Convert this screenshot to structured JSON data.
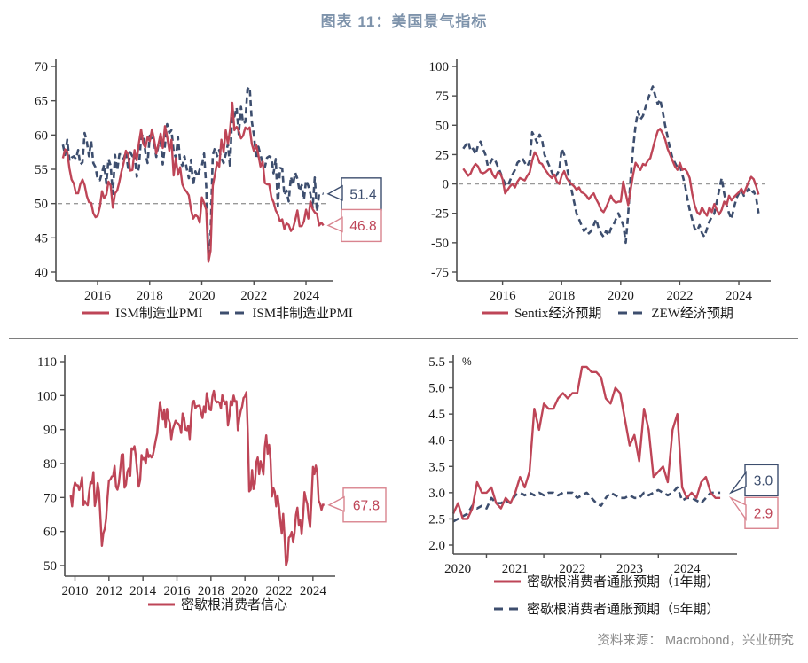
{
  "title": "图表 11：美国景气指标",
  "source": "资料来源：  Macrobond，兴业研究",
  "colors": {
    "red": "#BE4557",
    "navy": "#3D4E6E",
    "title_blue": "#7E93AB",
    "grid_gray": "#999999",
    "axis": "#4D4D4D",
    "text": "#1A1A1A",
    "red_border": "#D9848F",
    "source_gray": "#8A8A8A",
    "divider_gray": "#7E7E7E"
  },
  "chart_data": [
    {
      "type": "line",
      "x_start": 2014.67,
      "x_end": 2024.67,
      "x_ticks": [
        2016,
        2018,
        2020,
        2022,
        2024
      ],
      "x_tick_labels": [
        "2016",
        "2018",
        "2020",
        "2022",
        "2024"
      ],
      "y_ticks": [
        40,
        45,
        50,
        55,
        60,
        65,
        70
      ],
      "y_tick_labels": [
        "40",
        "45",
        "50",
        "55",
        "60",
        "65",
        "70"
      ],
      "ylim": [
        40,
        70
      ],
      "ref_line": 50,
      "series": [
        {
          "name": "ISM制造业PMI",
          "style": "solid",
          "color_role": "red",
          "values": [
            56.6,
            57.9,
            57.6,
            55.1,
            53.5,
            52.9,
            51.5,
            51.5,
            52.8,
            53.5,
            52.7,
            51.1,
            50.2,
            50.1,
            48.6,
            48.0,
            48.2,
            49.5,
            51.8,
            50.8,
            51.3,
            53.2,
            52.6,
            49.4,
            51.5,
            51.9,
            53.2,
            54.7,
            56.0,
            57.7,
            57.2,
            54.8,
            54.9,
            57.8,
            56.3,
            58.8,
            60.8,
            58.7,
            58.2,
            59.7,
            59.1,
            60.8,
            59.3,
            57.3,
            58.7,
            60.2,
            58.1,
            61.3,
            59.8,
            57.7,
            59.3,
            54.1,
            56.6,
            54.2,
            55.3,
            52.8,
            52.1,
            51.7,
            51.2,
            49.1,
            47.8,
            48.3,
            48.1,
            47.2,
            50.9,
            50.1,
            49.1,
            41.5,
            43.1,
            52.6,
            54.2,
            56.0,
            55.4,
            59.3,
            57.5,
            60.7,
            58.7,
            60.8,
            64.7,
            60.7,
            61.2,
            60.6,
            59.5,
            59.9,
            61.1,
            60.8,
            61.1,
            58.7,
            57.6,
            58.6,
            57.1,
            55.4,
            56.1,
            53.0,
            52.8,
            52.8,
            50.9,
            50.2,
            49.0,
            48.4,
            47.4,
            47.7,
            46.3,
            47.1,
            46.9,
            46.0,
            46.4,
            47.6,
            49.0,
            46.7,
            46.7,
            47.4,
            49.1,
            47.8,
            50.3,
            49.2,
            48.7,
            48.5,
            46.8,
            47.2,
            46.8
          ]
        },
        {
          "name": "ISM非制造业PMI",
          "style": "dashed",
          "color_role": "navy",
          "values": [
            58.6,
            57.1,
            59.3,
            56.2,
            56.7,
            56.9,
            56.5,
            57.8,
            55.7,
            56.0,
            60.3,
            59.0,
            56.9,
            59.1,
            55.9,
            55.3,
            53.5,
            53.4,
            54.5,
            55.7,
            52.9,
            56.5,
            55.5,
            51.4,
            57.1,
            54.8,
            57.2,
            57.2,
            56.5,
            57.6,
            55.2,
            57.5,
            56.9,
            57.4,
            53.9,
            55.3,
            59.8,
            60.1,
            57.4,
            55.9,
            59.9,
            59.5,
            58.8,
            56.8,
            58.6,
            59.1,
            55.7,
            58.5,
            61.6,
            60.3,
            60.7,
            57.6,
            56.7,
            59.7,
            56.1,
            55.5,
            56.9,
            55.1,
            53.7,
            56.4,
            52.6,
            54.7,
            53.9,
            55.0,
            55.5,
            57.3,
            52.5,
            41.8,
            45.4,
            57.1,
            58.1,
            56.9,
            57.8,
            56.6,
            55.9,
            57.2,
            58.7,
            55.3,
            63.7,
            62.7,
            64.0,
            60.1,
            64.1,
            61.7,
            61.9,
            66.7,
            67.0,
            62.0,
            59.9,
            56.5,
            58.3,
            57.1,
            55.9,
            55.3,
            56.7,
            56.9,
            56.7,
            54.4,
            56.5,
            49.6,
            55.2,
            55.1,
            51.2,
            51.9,
            50.3,
            53.9,
            52.7,
            54.5,
            53.6,
            51.8,
            52.7,
            50.6,
            53.4,
            52.6,
            51.4,
            49.4,
            53.8,
            48.8,
            51.4,
            51.5,
            51.4
          ]
        }
      ],
      "callouts": [
        {
          "label": "51.4",
          "value": 51.4,
          "color_role": "navy"
        },
        {
          "label": "46.8",
          "value": 46.8,
          "color_role": "red"
        }
      ]
    },
    {
      "type": "line",
      "x_start": 2014.67,
      "x_end": 2024.67,
      "x_ticks": [
        2016,
        2018,
        2020,
        2022,
        2024
      ],
      "x_tick_labels": [
        "2016",
        "2018",
        "2020",
        "2022",
        "2024"
      ],
      "y_ticks": [
        -75,
        -50,
        -25,
        0,
        25,
        50,
        75,
        100
      ],
      "y_tick_labels": [
        "-75",
        "-50",
        "-25",
        "0",
        "25",
        "50",
        "75",
        "100"
      ],
      "ylim": [
        -75,
        100
      ],
      "ref_line": 0,
      "series": [
        {
          "name": "Sentix经济预期",
          "style": "solid",
          "color_role": "red",
          "values": [
            13,
            10,
            7,
            9,
            14,
            17,
            15,
            10,
            9,
            10,
            12,
            13,
            8,
            5,
            10,
            9,
            4,
            -8,
            -5,
            -2,
            0,
            -3,
            2,
            5,
            4,
            3,
            7,
            10,
            20,
            27,
            24,
            18,
            17,
            13,
            10,
            7,
            5,
            8,
            2,
            0,
            7,
            11,
            5,
            2,
            0,
            -2,
            -5,
            -3,
            -7,
            -8,
            -10,
            -13,
            -10,
            -8,
            -13,
            -17,
            -22,
            -24,
            -20,
            -15,
            -10,
            -14,
            -16,
            -15,
            -15,
            2,
            -8,
            -18,
            -5,
            8,
            18,
            15,
            12,
            17,
            16,
            20,
            22,
            30,
            38,
            45,
            47,
            43,
            38,
            30,
            25,
            20,
            15,
            12,
            18,
            12,
            13,
            10,
            5,
            -8,
            -18,
            -24,
            -26,
            -20,
            -24,
            -27,
            -20,
            -24,
            -17,
            -22,
            -26,
            -22,
            -15,
            -18,
            -10,
            -14,
            -11,
            -9,
            -7,
            -4,
            -8,
            -3,
            2,
            6,
            4,
            -2,
            -9
          ]
        },
        {
          "name": "ZEW经济预期",
          "style": "dashed",
          "color_role": "navy",
          "values": [
            30,
            33,
            36,
            28,
            30,
            25,
            33,
            36,
            30,
            25,
            15,
            18,
            22,
            20,
            15,
            10,
            5,
            0,
            -2,
            3,
            8,
            12,
            18,
            20,
            22,
            18,
            15,
            20,
            44,
            40,
            35,
            42,
            38,
            25,
            20,
            15,
            10,
            5,
            8,
            12,
            30,
            25,
            15,
            5,
            -5,
            -15,
            -25,
            -30,
            -35,
            -40,
            -38,
            -42,
            -40,
            -35,
            -30,
            -38,
            -42,
            -45,
            -40,
            -44,
            -38,
            -35,
            -30,
            -25,
            -30,
            -35,
            -50,
            -25,
            5,
            30,
            50,
            62,
            55,
            58,
            65,
            72,
            78,
            83,
            75,
            68,
            72,
            62,
            50,
            40,
            30,
            22,
            18,
            14,
            16,
            8,
            0,
            -12,
            -22,
            -30,
            -38,
            -40,
            -35,
            -42,
            -45,
            -38,
            -32,
            -28,
            -25,
            -15,
            -5,
            5,
            -8,
            -18,
            -25,
            -30,
            -20,
            -12,
            -8,
            -5,
            -10,
            -7,
            -4,
            -8,
            -6,
            -12,
            -25
          ]
        }
      ],
      "callouts": []
    },
    {
      "type": "line",
      "x_start": 2009.75,
      "x_end": 2024.67,
      "x_ticks": [
        2010,
        2012,
        2014,
        2016,
        2018,
        2020,
        2022,
        2024
      ],
      "x_tick_labels": [
        "2010",
        "2012",
        "2014",
        "2016",
        "2018",
        "2020",
        "2022",
        "2024"
      ],
      "y_ticks": [
        50,
        60,
        70,
        80,
        90,
        100,
        110
      ],
      "y_tick_labels": [
        "50",
        "60",
        "70",
        "80",
        "90",
        "100",
        "110"
      ],
      "ylim": [
        50,
        110
      ],
      "ref_line": null,
      "series": [
        {
          "name": "密歇根消费者信心",
          "style": "solid",
          "color_role": "red",
          "values": [
            70.6,
            67.4,
            72.5,
            74.4,
            73.6,
            73.6,
            72.2,
            73.6,
            76.0,
            67.8,
            68.9,
            68.2,
            67.7,
            71.6,
            74.5,
            74.2,
            77.5,
            67.5,
            69.8,
            74.3,
            71.5,
            63.7,
            55.8,
            59.5,
            60.8,
            63.7,
            69.9,
            75.0,
            75.3,
            76.2,
            76.4,
            79.3,
            73.2,
            72.3,
            74.3,
            78.3,
            82.6,
            82.7,
            72.9,
            73.8,
            77.6,
            78.6,
            76.4,
            84.5,
            84.1,
            85.1,
            82.1,
            77.5,
            73.2,
            75.1,
            82.5,
            81.2,
            81.6,
            80.0,
            84.1,
            81.9,
            82.5,
            81.8,
            82.5,
            84.6,
            86.9,
            88.8,
            93.6,
            98.1,
            95.4,
            93.0,
            95.9,
            90.7,
            96.1,
            93.1,
            91.9,
            87.2,
            90.0,
            91.3,
            92.6,
            92.0,
            91.7,
            91.0,
            89.0,
            94.7,
            93.5,
            90.0,
            89.8,
            91.2,
            87.2,
            93.8,
            98.2,
            98.5,
            96.3,
            96.9,
            97.0,
            97.1,
            95.0,
            93.4,
            96.8,
            95.1,
            100.7,
            98.5,
            95.9,
            95.7,
            99.7,
            101.4,
            98.8,
            98.0,
            98.2,
            97.9,
            96.2,
            100.1,
            98.6,
            97.5,
            98.3,
            91.2,
            93.8,
            98.4,
            97.2,
            100.0,
            98.2,
            98.4,
            89.8,
            93.2,
            95.5,
            96.8,
            99.3,
            99.8,
            101.0,
            89.1,
            71.8,
            72.3,
            78.1,
            72.5,
            74.1,
            80.4,
            81.8,
            76.9,
            80.7,
            79.0,
            76.8,
            84.9,
            88.3,
            82.9,
            85.5,
            81.2,
            70.3,
            72.8,
            71.7,
            67.4,
            70.6,
            67.2,
            62.8,
            59.4,
            65.2,
            58.4,
            50.0,
            51.5,
            58.2,
            58.6,
            59.9,
            56.8,
            59.7,
            64.9,
            67.0,
            62.0,
            63.5,
            59.2,
            64.4,
            71.6,
            69.5,
            68.1,
            63.8,
            61.3,
            69.7,
            79.0,
            76.9,
            79.4,
            77.2,
            69.1,
            68.2,
            66.4,
            67.9,
            67.8
          ]
        }
      ],
      "callouts": [
        {
          "label": "67.8",
          "value": 67.8,
          "color_role": "red"
        }
      ]
    },
    {
      "type": "line",
      "x_start": 2019.92,
      "x_end": 2024.58,
      "x_ticks": [
        2020,
        2021,
        2022,
        2023,
        2024
      ],
      "x_tick_labels": [
        "2020",
        "2021",
        "2022",
        "2023",
        "2024"
      ],
      "y_ticks": [
        2.0,
        2.5,
        3.0,
        3.5,
        4.0,
        4.5,
        5.0,
        5.5
      ],
      "y_tick_labels": [
        "2.0",
        "2.5",
        "3.0",
        "3.5",
        "4.0",
        "4.5",
        "5.0",
        "5.5"
      ],
      "ylim": [
        2.0,
        5.5
      ],
      "ref_line": null,
      "y_unit": "%",
      "series": [
        {
          "name": "密歇根消费者通胀预期（1年期）",
          "style": "solid",
          "color_role": "red",
          "values": [
            2.6,
            2.8,
            2.5,
            2.5,
            2.7,
            3.2,
            3.0,
            3.0,
            3.1,
            2.8,
            2.7,
            2.9,
            2.8,
            3.0,
            3.3,
            3.1,
            3.4,
            4.6,
            4.2,
            4.7,
            4.6,
            4.6,
            4.8,
            4.9,
            4.8,
            4.9,
            4.9,
            5.4,
            5.4,
            5.3,
            5.3,
            5.2,
            4.8,
            4.7,
            5.0,
            4.9,
            4.4,
            3.9,
            4.1,
            3.6,
            4.6,
            4.2,
            3.3,
            3.4,
            3.5,
            3.2,
            4.2,
            4.5,
            3.1,
            2.9,
            3.0,
            2.9,
            3.2,
            3.3,
            3.0,
            2.9,
            2.9
          ]
        },
        {
          "name": "密歇根消费者通胀预期（5年期）",
          "style": "dashed",
          "color_role": "navy",
          "values": [
            2.45,
            2.5,
            2.55,
            2.6,
            2.75,
            2.7,
            2.75,
            2.7,
            2.9,
            2.8,
            2.8,
            2.85,
            2.8,
            2.95,
            3.0,
            2.95,
            3.0,
            2.95,
            3.0,
            2.95,
            3.0,
            3.0,
            2.95,
            3.0,
            3.0,
            3.0,
            2.9,
            2.95,
            3.0,
            2.9,
            2.8,
            2.75,
            2.9,
            3.0,
            2.95,
            2.9,
            2.9,
            2.95,
            2.9,
            2.9,
            3.0,
            2.95,
            3.0,
            3.05,
            3.0,
            2.95,
            3.0,
            3.1,
            2.85,
            2.9,
            2.9,
            2.85,
            2.8,
            2.9,
            3.0,
            3.0,
            3.0
          ]
        }
      ],
      "callouts": [
        {
          "label": "3.0",
          "value": 3.0,
          "color_role": "navy"
        },
        {
          "label": "2.9",
          "value": 2.9,
          "color_role": "red"
        }
      ]
    }
  ]
}
